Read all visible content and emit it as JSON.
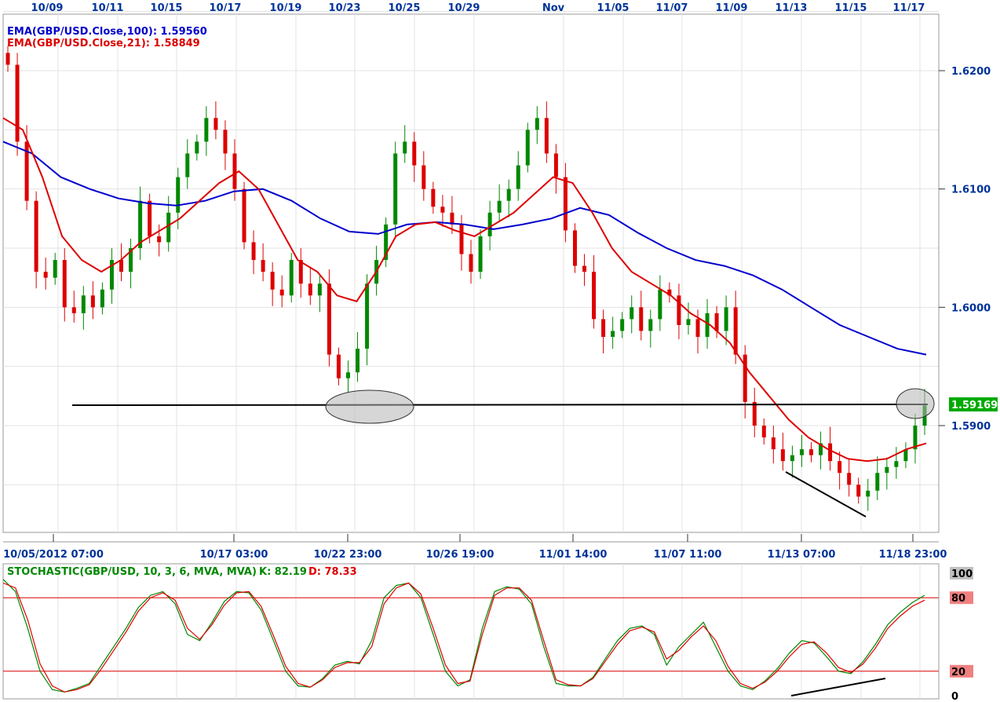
{
  "chart_data": [
    {
      "type": "candlestick",
      "instrument": "GBP/USD",
      "top_date_labels": [
        "10/09",
        "10/11",
        "10/15",
        "10/17",
        "10/19",
        "10/23",
        "10/25",
        "10/29",
        "Nov",
        "11/05",
        "11/07",
        "11/09",
        "11/13",
        "11/15",
        "11/17"
      ],
      "x_tick_labels": [
        "10/05/2012 07:00",
        "10/17 03:00",
        "10/22 23:00",
        "10/26 19:00",
        "11/01 14:00",
        "11/07 11:00",
        "11/13 07:00",
        "11/18 23:00"
      ],
      "y_tick_labels": [
        "1.6200",
        "1.6100",
        "1.6000",
        "1.5900"
      ],
      "ylim": [
        1.582,
        1.626
      ],
      "grid": true,
      "legend_placement": "top-left",
      "last_price_label": "1.59169",
      "indicators": [
        {
          "label": "EMA(GBP/USD.Close,100): 1.59560",
          "color": "#0000cc"
        },
        {
          "label": "EMA(GBP/USD.Close,21): 1.58849",
          "color": "#dd0000"
        }
      ],
      "series": [
        {
          "name": "Close",
          "values": [
            1.6205,
            1.614,
            1.609,
            1.603,
            1.6025,
            1.604,
            1.6,
            1.5995,
            1.601,
            1.6,
            1.6015,
            1.604,
            1.603,
            1.605,
            1.609,
            1.606,
            1.6055,
            1.608,
            1.611,
            1.613,
            1.614,
            1.616,
            1.615,
            1.613,
            1.61,
            1.6055,
            1.604,
            1.603,
            1.6015,
            1.601,
            1.604,
            1.602,
            1.601,
            1.602,
            1.596,
            1.594,
            1.5945,
            1.5965,
            1.602,
            1.604,
            1.607,
            1.613,
            1.614,
            1.612,
            1.61,
            1.6085,
            1.608,
            1.607,
            1.6045,
            1.603,
            1.606,
            1.608,
            1.609,
            1.61,
            1.612,
            1.615,
            1.616,
            1.613,
            1.611,
            1.6065,
            1.6035,
            1.603,
            1.599,
            1.5975,
            1.598,
            1.599,
            1.6,
            1.598,
            1.599,
            1.6015,
            1.601,
            1.5985,
            1.599,
            1.5975,
            1.5995,
            1.598,
            1.6,
            1.596,
            1.592,
            1.59,
            1.589,
            1.588,
            1.587,
            1.5875,
            1.588,
            1.5875,
            1.5885,
            1.587,
            1.586,
            1.585,
            1.584,
            1.5845,
            1.586,
            1.5865,
            1.587,
            1.588,
            1.59,
            1.5917
          ]
        },
        {
          "name": "EMA 21",
          "values": [
            1.616,
            1.615,
            1.611,
            1.606,
            1.604,
            1.603,
            1.604,
            1.6055,
            1.6065,
            1.6075,
            1.609,
            1.6105,
            1.6115,
            1.61,
            1.607,
            1.604,
            1.603,
            1.601,
            1.6005,
            1.603,
            1.606,
            1.607,
            1.6072,
            1.6065,
            1.606,
            1.607,
            1.608,
            1.6095,
            1.611,
            1.6105,
            1.608,
            1.605,
            1.603,
            1.602,
            1.601,
            1.5995,
            1.5985,
            1.597,
            1.5945,
            1.5925,
            1.5905,
            1.589,
            1.588,
            1.5872,
            1.587,
            1.5872,
            1.588,
            1.5885
          ]
        },
        {
          "name": "EMA 100",
          "values": [
            1.614,
            1.613,
            1.611,
            1.61,
            1.6092,
            1.6088,
            1.6086,
            1.609,
            1.6098,
            1.61,
            1.609,
            1.6075,
            1.6064,
            1.6062,
            1.607,
            1.6072,
            1.607,
            1.6066,
            1.607,
            1.6075,
            1.6084,
            1.6078,
            1.6063,
            1.605,
            1.604,
            1.6035,
            1.6027,
            1.6015,
            1.6,
            1.5985,
            1.5975,
            1.5965,
            1.596
          ]
        }
      ]
    },
    {
      "type": "line",
      "title": "STOCHASTIC(GBP/USD, 10, 3, 6, MVA, MVA) -",
      "k_label": "K: 82.19",
      "d_label": "D: 78.33",
      "y_tick_labels": [
        "100",
        "80",
        "20",
        "0"
      ],
      "ylim": [
        0,
        100
      ],
      "levels": [
        80,
        20
      ],
      "series": [
        {
          "name": "K",
          "color": "#008800",
          "values": [
            95,
            85,
            55,
            20,
            5,
            3,
            6,
            10,
            25,
            40,
            55,
            72,
            82,
            85,
            75,
            50,
            45,
            60,
            77,
            85,
            84,
            70,
            45,
            20,
            8,
            7,
            14,
            25,
            28,
            26,
            45,
            80,
            90,
            92,
            80,
            50,
            20,
            8,
            13,
            55,
            85,
            89,
            87,
            75,
            40,
            10,
            8,
            8,
            15,
            30,
            45,
            55,
            57,
            50,
            25,
            40,
            50,
            60,
            40,
            20,
            8,
            5,
            12,
            22,
            35,
            45,
            43,
            32,
            20,
            18,
            28,
            42,
            58,
            68,
            76,
            82
          ]
        },
        {
          "name": "D",
          "color": "#dd0000",
          "values": [
            92,
            88,
            62,
            26,
            8,
            3,
            5,
            9,
            22,
            37,
            52,
            69,
            80,
            84,
            78,
            55,
            46,
            58,
            74,
            84,
            85,
            73,
            49,
            24,
            10,
            7,
            13,
            23,
            27,
            27,
            40,
            75,
            88,
            92,
            83,
            55,
            25,
            10,
            12,
            50,
            82,
            88,
            88,
            78,
            45,
            13,
            9,
            8,
            14,
            28,
            42,
            53,
            56,
            52,
            30,
            37,
            48,
            57,
            45,
            24,
            10,
            6,
            11,
            20,
            32,
            42,
            44,
            35,
            23,
            19,
            26,
            39,
            55,
            65,
            73,
            78
          ]
        }
      ]
    }
  ]
}
